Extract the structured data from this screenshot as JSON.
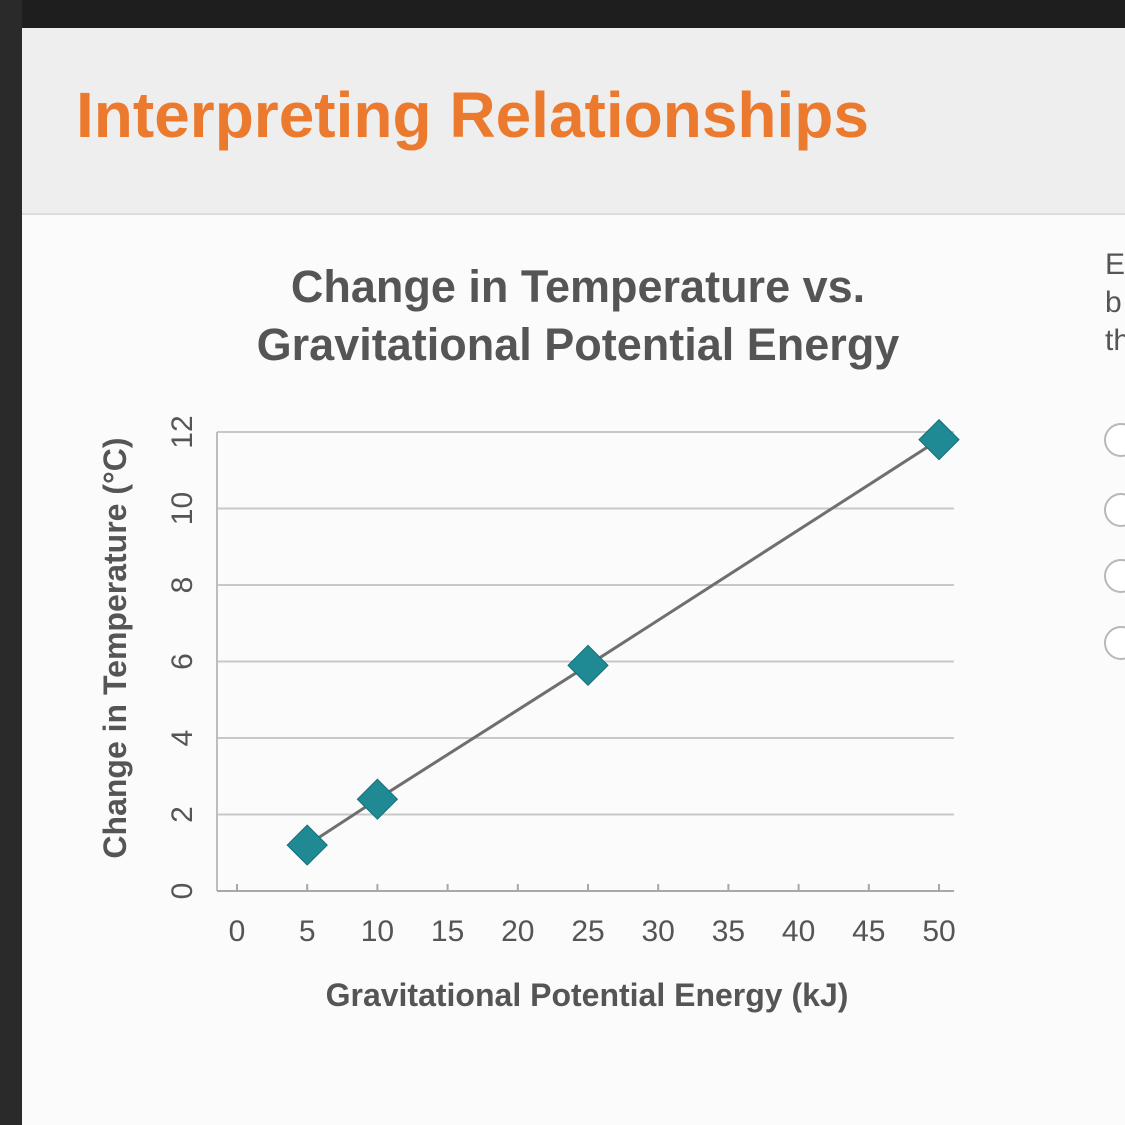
{
  "header": {
    "title": "Interpreting Relationships"
  },
  "side_panel": {
    "text_lines": [
      "E",
      "b",
      "th"
    ],
    "radio_count": 4
  },
  "chart_data": {
    "type": "line",
    "title": [
      "Change in Temperature vs.",
      "Gravitational Potential Energy"
    ],
    "xlabel": "Gravitational Potential Energy (kJ)",
    "ylabel": "Change in Temperature (°C)",
    "xlim": [
      0,
      50
    ],
    "ylim": [
      0,
      12
    ],
    "x_ticks": [
      0,
      5,
      10,
      15,
      20,
      25,
      30,
      35,
      40,
      45,
      50
    ],
    "y_ticks": [
      0,
      2,
      4,
      6,
      8,
      10,
      12
    ],
    "grid": true,
    "marker": "diamond",
    "series": [
      {
        "x": [
          5,
          10,
          25,
          50
        ],
        "y": [
          1.2,
          2.4,
          5.9,
          11.8
        ]
      }
    ],
    "colors": {
      "line": "#6f6f6f",
      "marker": "#1f8a94",
      "grid": "#c8c8c8",
      "text": "#555555"
    }
  }
}
